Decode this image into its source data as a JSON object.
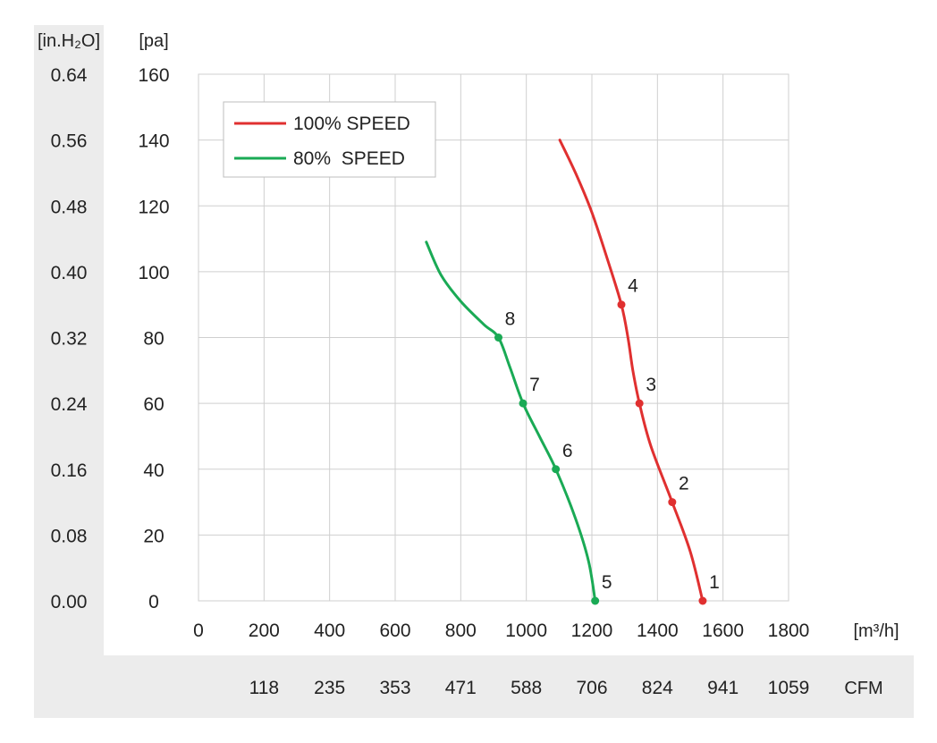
{
  "chart_data": {
    "type": "line",
    "xlim": [
      0,
      1800
    ],
    "ylim": [
      0,
      160
    ],
    "grid": true,
    "legend_position": "top-left",
    "x_unit": "[m³/h]",
    "y_unit": "[pa]",
    "y2_unit": "[in.H₂O]",
    "x2_unit": "CFM",
    "x_ticks": [
      0,
      200,
      400,
      600,
      800,
      1000,
      1200,
      1400,
      1600,
      1800
    ],
    "y_ticks": [
      0,
      20,
      40,
      60,
      80,
      100,
      120,
      140,
      160
    ],
    "y2_ticks": [
      "0.00",
      "0.08",
      "0.16",
      "0.24",
      "0.32",
      "0.40",
      "0.48",
      "0.56",
      "0.64"
    ],
    "x2_ticks": [
      "118",
      "235",
      "353",
      "471",
      "588",
      "706",
      "824",
      "941",
      "1059"
    ],
    "series": [
      {
        "name": "100% SPEED",
        "color": "#e03030",
        "points": [
          [
            1102,
            140
          ],
          [
            1150,
            130
          ],
          [
            1200,
            118
          ],
          [
            1250,
            103
          ],
          [
            1290,
            90
          ],
          [
            1310,
            80
          ],
          [
            1325,
            70
          ],
          [
            1345,
            60
          ],
          [
            1380,
            47
          ],
          [
            1445,
            30
          ],
          [
            1500,
            15
          ],
          [
            1538,
            0
          ]
        ],
        "markers": [
          {
            "label": "1",
            "x": 1538,
            "y": 0
          },
          {
            "label": "2",
            "x": 1445,
            "y": 30
          },
          {
            "label": "3",
            "x": 1345,
            "y": 60
          },
          {
            "label": "4",
            "x": 1290,
            "y": 90
          }
        ]
      },
      {
        "name": "80%  SPEED",
        "color": "#1aaa55",
        "points": [
          [
            695,
            109
          ],
          [
            740,
            99
          ],
          [
            800,
            91
          ],
          [
            870,
            84
          ],
          [
            915,
            80
          ],
          [
            950,
            71
          ],
          [
            990,
            60
          ],
          [
            1040,
            50
          ],
          [
            1090,
            40
          ],
          [
            1150,
            25
          ],
          [
            1190,
            12
          ],
          [
            1210,
            0
          ]
        ],
        "markers": [
          {
            "label": "5",
            "x": 1210,
            "y": 0
          },
          {
            "label": "6",
            "x": 1090,
            "y": 40
          },
          {
            "label": "7",
            "x": 990,
            "y": 60
          },
          {
            "label": "8",
            "x": 915,
            "y": 80
          }
        ]
      }
    ]
  }
}
